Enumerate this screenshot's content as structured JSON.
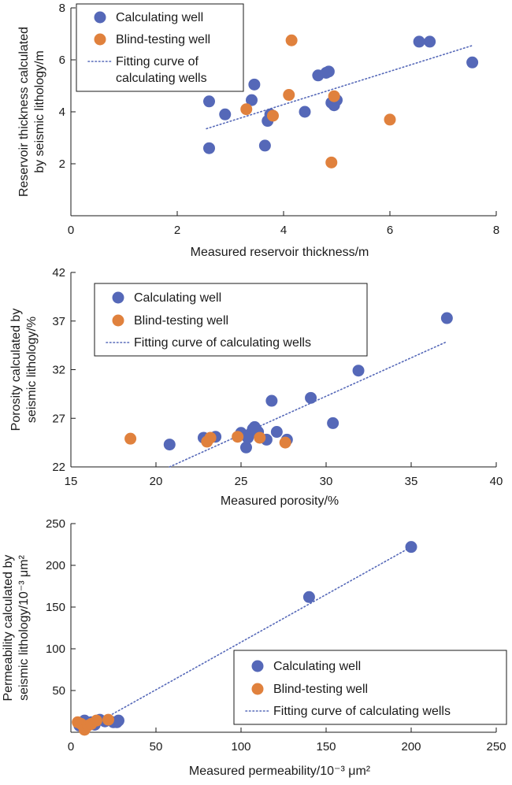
{
  "colors": {
    "calculating": "#5568b8",
    "blind": "#e0813d",
    "fit": "#5568b8"
  },
  "chart_data": [
    {
      "type": "scatter",
      "xlabel": "Measured reservoir thickness/m",
      "ylabel": [
        "Reservoir thickness calculated",
        "by seismic lithology/m"
      ],
      "xlim": [
        0,
        8
      ],
      "ylim": [
        0,
        8
      ],
      "xticks": [
        0,
        2,
        4,
        6,
        8
      ],
      "yticks": [
        2,
        4,
        6,
        8
      ],
      "legend_position": "top-left",
      "legend": [
        "Calculating well",
        "Blind-testing well",
        [
          "Fitting curve of",
          "calculating wells"
        ]
      ],
      "series": [
        {
          "name": "Calculating well",
          "points": [
            [
              2.6,
              2.6
            ],
            [
              2.6,
              4.4
            ],
            [
              2.9,
              3.9
            ],
            [
              3.4,
              4.45
            ],
            [
              3.45,
              5.05
            ],
            [
              3.65,
              2.7
            ],
            [
              3.7,
              3.65
            ],
            [
              3.75,
              3.9
            ],
            [
              4.4,
              4.0
            ],
            [
              4.65,
              5.4
            ],
            [
              4.8,
              5.5
            ],
            [
              4.85,
              5.55
            ],
            [
              4.9,
              4.35
            ],
            [
              4.95,
              4.25
            ],
            [
              5.0,
              4.45
            ],
            [
              6.55,
              6.7
            ],
            [
              6.75,
              6.7
            ],
            [
              7.55,
              5.9
            ]
          ]
        },
        {
          "name": "Blind-testing well",
          "points": [
            [
              3.3,
              4.1
            ],
            [
              3.8,
              3.85
            ],
            [
              4.1,
              4.65
            ],
            [
              4.15,
              6.75
            ],
            [
              4.9,
              2.05
            ],
            [
              4.95,
              4.6
            ],
            [
              6.0,
              3.7
            ]
          ]
        }
      ],
      "fit_line": {
        "name": "Fitting curve of calculating wells",
        "x": [
          2.55,
          7.55
        ],
        "y": [
          3.35,
          6.55
        ]
      }
    },
    {
      "type": "scatter",
      "xlabel": "Measured porosity/%",
      "ylabel": [
        "Porosity calculated by",
        "seismic lithology/%"
      ],
      "xlim": [
        15,
        40
      ],
      "ylim": [
        22,
        42
      ],
      "xticks": [
        15,
        20,
        25,
        30,
        35,
        40
      ],
      "yticks": [
        22,
        27,
        32,
        37,
        42
      ],
      "legend_position": "top-left",
      "legend": [
        "Calculating well",
        "Blind-testing well",
        "Fitting curve of calculating wells"
      ],
      "series": [
        {
          "name": "Calculating well",
          "points": [
            [
              20.8,
              24.3
            ],
            [
              22.8,
              25.0
            ],
            [
              23.5,
              25.1
            ],
            [
              25.0,
              25.5
            ],
            [
              25.3,
              24.0
            ],
            [
              25.4,
              25.0
            ],
            [
              25.6,
              25.5
            ],
            [
              25.7,
              25.9
            ],
            [
              25.8,
              26.1
            ],
            [
              25.9,
              25.8
            ],
            [
              26.0,
              25.6
            ],
            [
              26.5,
              24.8
            ],
            [
              26.8,
              28.8
            ],
            [
              27.1,
              25.6
            ],
            [
              27.7,
              24.8
            ],
            [
              29.1,
              29.1
            ],
            [
              30.4,
              26.5
            ],
            [
              31.9,
              31.9
            ],
            [
              37.1,
              37.3
            ]
          ]
        },
        {
          "name": "Blind-testing well",
          "points": [
            [
              18.5,
              24.9
            ],
            [
              23.0,
              24.6
            ],
            [
              23.2,
              25.0
            ],
            [
              24.8,
              25.1
            ],
            [
              26.1,
              25.0
            ],
            [
              27.6,
              24.5
            ]
          ]
        }
      ],
      "fit_line": {
        "name": "Fitting curve of calculating wells",
        "x": [
          20.8,
          37.0
        ],
        "y": [
          22.0,
          34.8
        ]
      }
    },
    {
      "type": "scatter",
      "xlabel": "Measured permeability/10⁻³ μm²",
      "ylabel": [
        "Permeability calculated by",
        "seismic lithology/10⁻³ μm²"
      ],
      "xlim": [
        0,
        250
      ],
      "ylim": [
        0,
        250
      ],
      "xticks": [
        0,
        50,
        100,
        150,
        200,
        250
      ],
      "yticks": [
        50,
        100,
        150,
        200,
        250
      ],
      "legend_position": "bottom-right",
      "legend": [
        "Calculating well",
        "Blind-testing well",
        "Fitting curve of calculating wells"
      ],
      "series": [
        {
          "name": "Calculating well",
          "points": [
            [
              5,
              8
            ],
            [
              8,
              14
            ],
            [
              10,
              10
            ],
            [
              12,
              12
            ],
            [
              14,
              9
            ],
            [
              17,
              15
            ],
            [
              20,
              13
            ],
            [
              25,
              12
            ],
            [
              27,
              12
            ],
            [
              28,
              14
            ],
            [
              140,
              162
            ],
            [
              200,
              222
            ]
          ]
        },
        {
          "name": "Blind-testing well",
          "points": [
            [
              4,
              12
            ],
            [
              6,
              10
            ],
            [
              8,
              3
            ],
            [
              10,
              8
            ],
            [
              12,
              10
            ],
            [
              15,
              14
            ],
            [
              22,
              15
            ]
          ]
        }
      ],
      "fit_line": {
        "name": "Fitting curve of calculating wells",
        "x": [
          8,
          200
        ],
        "y": [
          3,
          222
        ]
      }
    }
  ]
}
